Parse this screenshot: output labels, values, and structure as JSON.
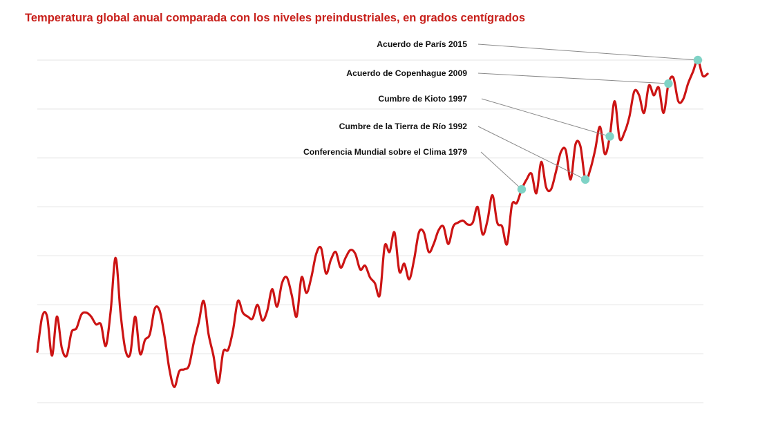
{
  "chart_data": {
    "type": "line",
    "title": "Temperatura global anual comparada con los niveles preindustriales, en grados centígrados",
    "xlabel": "",
    "ylabel": "",
    "grid": true,
    "colors": {
      "title": "#c8201b",
      "line": "#cc1414",
      "marker": "#7fd3c6",
      "leader": "#8a8a8a",
      "grid": "#e3e3e3"
    },
    "xlim": [
      1880,
      2016
    ],
    "ylim": [
      -0.5,
      1.25
    ],
    "series": [
      {
        "x": [
          1880,
          1881,
          1882,
          1883,
          1884,
          1885,
          1886,
          1887,
          1888,
          1889,
          1890,
          1891,
          1892,
          1893,
          1894,
          1895,
          1896,
          1897,
          1898,
          1899,
          1900,
          1901,
          1902,
          1903,
          1904,
          1905,
          1906,
          1907,
          1908,
          1909,
          1910,
          1911,
          1912,
          1913,
          1914,
          1915,
          1916,
          1917,
          1918,
          1919,
          1920,
          1921,
          1922,
          1923,
          1924,
          1925,
          1926,
          1927,
          1928,
          1929,
          1930,
          1931,
          1932,
          1933,
          1934,
          1935,
          1936,
          1937,
          1938,
          1939,
          1940,
          1941,
          1942,
          1943,
          1944,
          1945,
          1946,
          1947,
          1948,
          1949,
          1950,
          1951,
          1952,
          1953,
          1954,
          1955,
          1956,
          1957,
          1958,
          1959,
          1960,
          1961,
          1962,
          1963,
          1964,
          1965,
          1966,
          1967,
          1968,
          1969,
          1970,
          1971,
          1972,
          1973,
          1974,
          1975,
          1976,
          1977,
          1978,
          1979,
          1980,
          1981,
          1982,
          1983,
          1984,
          1985,
          1986,
          1987,
          1988,
          1989,
          1990,
          1991,
          1992,
          1993,
          1994,
          1995,
          1996,
          1997,
          1998,
          1999,
          2000,
          2001,
          2002,
          2003,
          2004,
          2005,
          2006,
          2007,
          2008,
          2009,
          2010,
          2011,
          2012,
          2013,
          2014,
          2015,
          2016,
          2017
        ],
        "y": [
          -0.24,
          -0.06,
          -0.06,
          -0.26,
          -0.06,
          -0.22,
          -0.26,
          -0.14,
          -0.12,
          -0.05,
          -0.04,
          -0.06,
          -0.1,
          -0.1,
          -0.21,
          -0.03,
          0.24,
          -0.04,
          -0.23,
          -0.25,
          -0.06,
          -0.25,
          -0.18,
          -0.15,
          -0.02,
          -0.03,
          -0.16,
          -0.33,
          -0.42,
          -0.34,
          -0.33,
          -0.31,
          -0.19,
          -0.09,
          0.02,
          -0.15,
          -0.26,
          -0.4,
          -0.24,
          -0.23,
          -0.13,
          0.02,
          -0.04,
          -0.06,
          -0.07,
          0.0,
          -0.08,
          -0.03,
          0.08,
          -0.01,
          0.11,
          0.14,
          0.05,
          -0.06,
          0.14,
          0.06,
          0.14,
          0.26,
          0.29,
          0.16,
          0.23,
          0.27,
          0.19,
          0.24,
          0.28,
          0.26,
          0.18,
          0.2,
          0.14,
          0.11,
          0.05,
          0.3,
          0.27,
          0.37,
          0.17,
          0.21,
          0.13,
          0.23,
          0.37,
          0.37,
          0.27,
          0.31,
          0.38,
          0.4,
          0.31,
          0.4,
          0.42,
          0.43,
          0.41,
          0.42,
          0.5,
          0.36,
          0.43,
          0.56,
          0.42,
          0.4,
          0.31,
          0.51,
          0.52,
          0.59,
          0.64,
          0.67,
          0.57,
          0.73,
          0.6,
          0.59,
          0.68,
          0.78,
          0.79,
          0.64,
          0.82,
          0.81,
          0.64,
          0.69,
          0.79,
          0.91,
          0.77,
          0.86,
          1.04,
          0.85,
          0.88,
          0.96,
          1.09,
          1.07,
          0.98,
          1.12,
          1.07,
          1.11,
          0.98,
          1.13,
          1.16,
          1.04,
          1.05,
          1.13,
          1.19,
          1.25,
          1.17,
          1.18
        ],
        "tension": 0.5
      }
    ],
    "annotations": [
      {
        "label": "Acuerdo de París 2015",
        "x": 2015,
        "y": 1.44
      },
      {
        "label": "Acuerdo de Copenhague 2009",
        "x": 2009,
        "y": 1.15
      },
      {
        "label": "Cumbre de Kioto 1997",
        "x": 1997,
        "y": 0.96
      },
      {
        "label": "Cumbre de la Tierra de Río 1992",
        "x": 1992,
        "y": 0.75
      },
      {
        "label": "Conferencia Mundial sobre el Clima 1979",
        "x": 1979,
        "y": 0.59
      }
    ]
  }
}
